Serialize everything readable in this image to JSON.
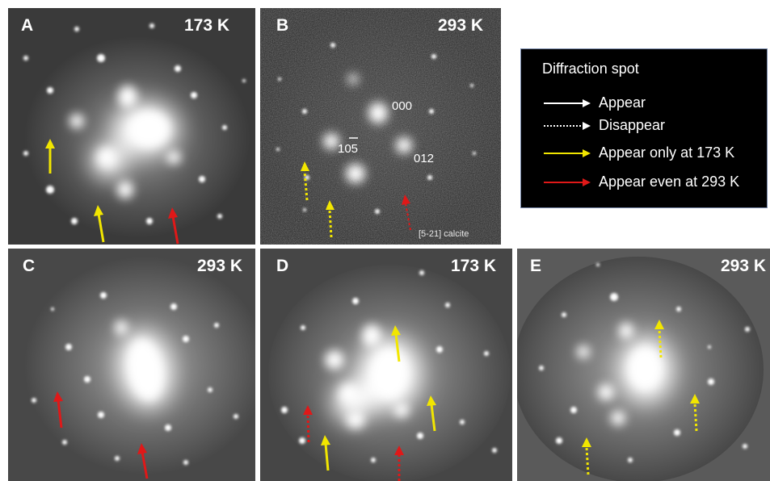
{
  "panels": {
    "a": {
      "label": "A",
      "temperature": "173 K"
    },
    "b": {
      "label": "B",
      "temperature": "293 K",
      "index_000": "000",
      "index_012": "012",
      "index_105": "105",
      "caption": "[5-21] calcite"
    },
    "c": {
      "label": "C",
      "temperature": "293 K"
    },
    "d": {
      "label": "D",
      "temperature": "173 K"
    },
    "e": {
      "label": "E",
      "temperature": "293 K"
    }
  },
  "legend": {
    "title": "Diffraction spot",
    "items": [
      {
        "text": "Appear",
        "color": "#ffffff",
        "style": "solid"
      },
      {
        "text": "Disappear",
        "color": "#ffffff",
        "style": "dotted"
      },
      {
        "text": "Appear only at 173 K",
        "color": "#f2e600",
        "style": "solid"
      },
      {
        "text": "Appear even at 293 K",
        "color": "#e01818",
        "style": "solid"
      }
    ]
  },
  "colors": {
    "yellow_arrow": "#f2e600",
    "red_arrow": "#e01818",
    "background": "#ffffff"
  }
}
